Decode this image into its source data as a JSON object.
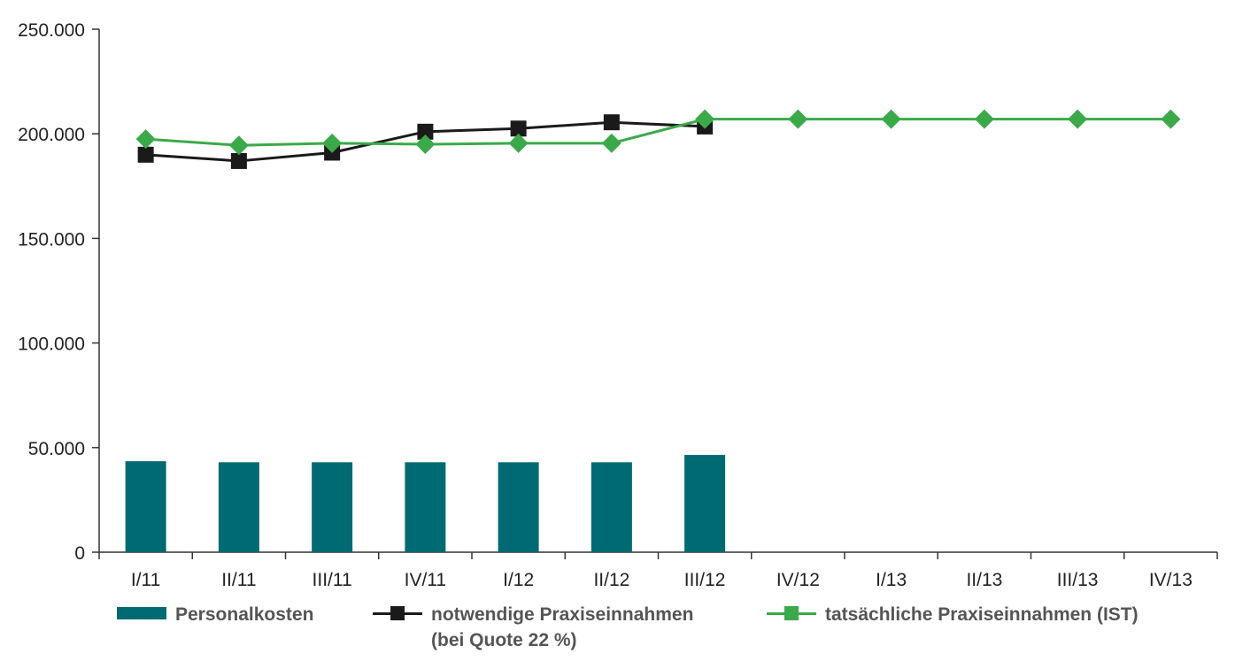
{
  "chart_data": {
    "type": "bar",
    "categories": [
      "I/11",
      "II/11",
      "III/11",
      "IV/11",
      "I/12",
      "II/12",
      "III/12",
      "IV/12",
      "I/13",
      "II/13",
      "III/13",
      "IV/13"
    ],
    "ylim": [
      0,
      250000
    ],
    "yticks": [
      0,
      50000,
      100000,
      150000,
      200000,
      250000
    ],
    "ytick_labels": [
      "0",
      "50.000",
      "100.000",
      "150.000",
      "200.000",
      "250.000"
    ],
    "grid": false,
    "legend_position": "bottom",
    "series": [
      {
        "name": "Personalkosten",
        "type": "bar",
        "color": "#006a73",
        "values": [
          43500,
          43000,
          43000,
          43000,
          43000,
          43000,
          46500,
          null,
          null,
          null,
          null,
          null
        ]
      },
      {
        "name": "notwendige Praxiseinnahmen",
        "name_line2": "(bei Quote 22 %)",
        "type": "line",
        "marker": "square",
        "color": "#1a1a1a",
        "values": [
          190000,
          187000,
          191000,
          201000,
          202500,
          205500,
          203500,
          null,
          null,
          null,
          null,
          null
        ]
      },
      {
        "name": "tatsächliche Praxiseinnahmen (IST)",
        "type": "line",
        "marker": "diamond",
        "color": "#3aaa48",
        "values": [
          197500,
          194500,
          195500,
          195000,
          195500,
          195500,
          207000,
          207000,
          207000,
          207000,
          207000,
          207000
        ]
      }
    ]
  }
}
